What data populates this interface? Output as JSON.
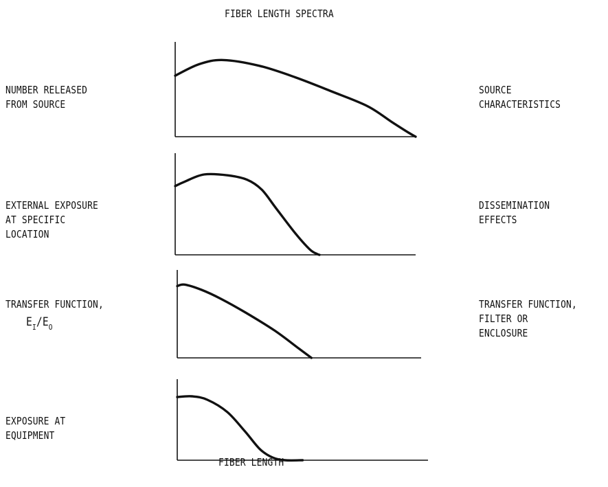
{
  "title": "FIBER LENGTH SPECTRA",
  "xlabel": "FIBER LENGTH",
  "panels": [
    {
      "left_label": [
        "NUMBER RELEASED",
        "FROM SOURCE"
      ],
      "right_label": [
        "SOURCE",
        "CHARACTERISTICS"
      ]
    },
    {
      "left_label": [
        "EXTERNAL EXPOSURE",
        "AT SPECIFIC",
        "LOCATION"
      ],
      "right_label": [
        "DISSEMINATION",
        "EFFECTS"
      ]
    },
    {
      "left_label": [
        "TRANSFER FUNCTION,"
      ],
      "left_formula": {
        "E": "E",
        "sub_num": "I",
        "slash": "/",
        "E2": "E",
        "sub_den": "O"
      },
      "right_label": [
        "TRANSFER FUNCTION,",
        "FILTER OR",
        "ENCLOSURE"
      ]
    },
    {
      "left_label": [
        "EXPOSURE AT",
        "EQUIPMENT"
      ],
      "right_label": []
    }
  ],
  "chart_data": [
    {
      "type": "line",
      "name": "NUMBER RELEASED FROM SOURCE",
      "xlim": [
        0,
        1
      ],
      "ylim": [
        0,
        1
      ],
      "x": [
        0,
        0.1,
        0.2,
        0.35,
        0.5,
        0.65,
        0.8,
        0.9,
        0.97,
        1.0
      ],
      "y": [
        0.74,
        0.88,
        0.93,
        0.86,
        0.72,
        0.55,
        0.37,
        0.18,
        0.05,
        0.0
      ]
    },
    {
      "type": "line",
      "name": "EXTERNAL EXPOSURE AT SPECIFIC LOCATION",
      "xlim": [
        0,
        1
      ],
      "ylim": [
        0,
        1
      ],
      "x": [
        0,
        0.04,
        0.12,
        0.22,
        0.3,
        0.36,
        0.42,
        0.5,
        0.56,
        0.59,
        0.6
      ],
      "y": [
        0.77,
        0.82,
        0.9,
        0.89,
        0.84,
        0.73,
        0.52,
        0.24,
        0.06,
        0.01,
        0.0
      ]
    },
    {
      "type": "line",
      "name": "TRANSFER FUNCTION, EI/EO",
      "xlim": [
        0,
        1
      ],
      "ylim": [
        0,
        1
      ],
      "x": [
        0,
        0.03,
        0.1,
        0.18,
        0.28,
        0.4,
        0.5,
        0.55
      ],
      "y": [
        0.95,
        0.97,
        0.9,
        0.78,
        0.6,
        0.36,
        0.12,
        0.0
      ]
    },
    {
      "type": "line",
      "name": "EXPOSURE AT EQUIPMENT",
      "xlim": [
        0,
        1
      ],
      "ylim": [
        0,
        1
      ],
      "x": [
        0,
        0.06,
        0.12,
        0.2,
        0.27,
        0.33,
        0.38,
        0.43,
        0.5
      ],
      "y": [
        0.92,
        0.93,
        0.88,
        0.7,
        0.42,
        0.16,
        0.04,
        0.0,
        0.0
      ]
    }
  ]
}
